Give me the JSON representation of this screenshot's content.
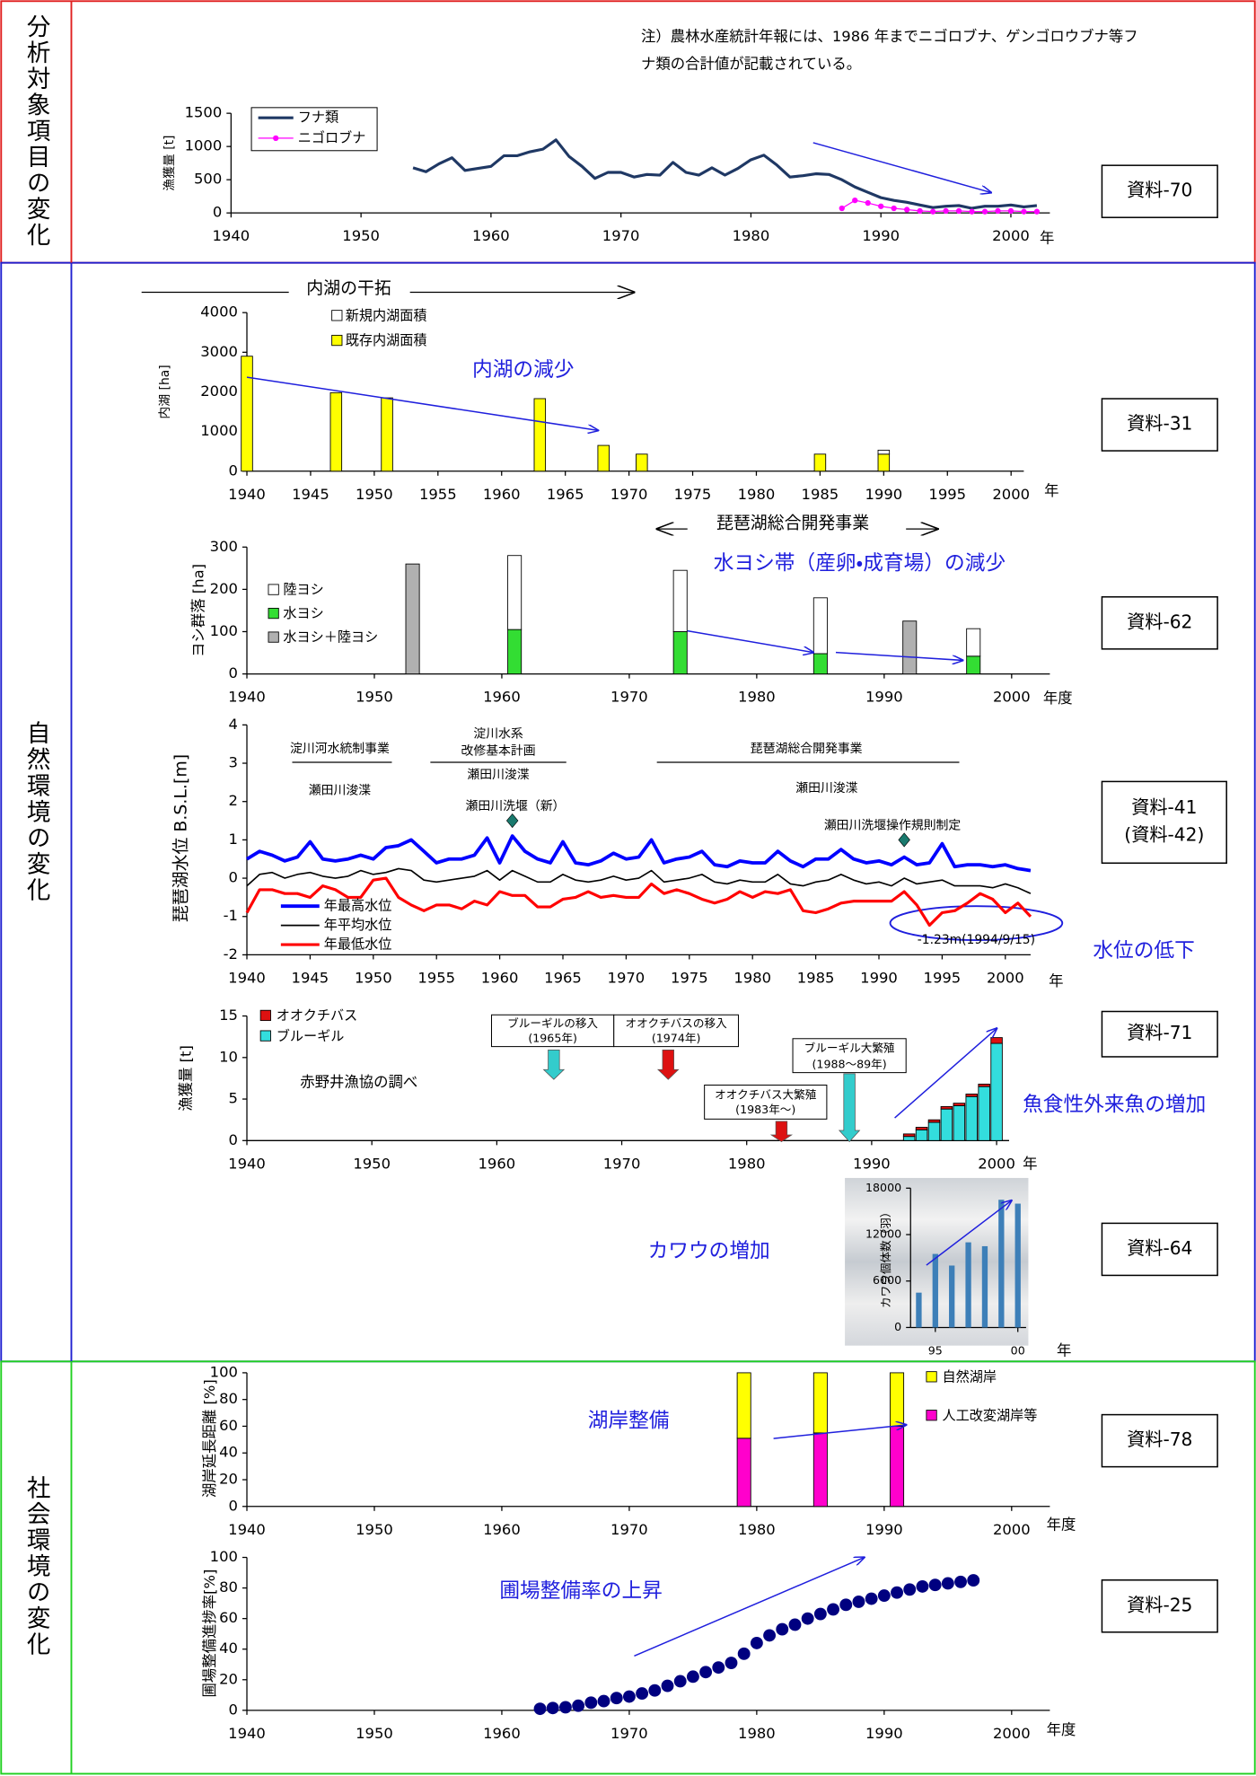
{
  "sections": [
    {
      "label": "分析対象項目の変化"
    },
    {
      "label": "自然環境の変化"
    },
    {
      "label": "社会環境の変化"
    }
  ],
  "chart_data": [
    {
      "type": "line",
      "ylabel": "漁獲量 [t]",
      "x_unit": "年",
      "reference": [
        "資料-70"
      ],
      "notes": [
        "注）農林水産統計年報には、1986 年までニゴロブナ、ゲンゴロウブナ等フ",
        "ナ類の合計値が記載されている。"
      ],
      "x": [
        1954,
        1955,
        1956,
        1957,
        1958,
        1959,
        1960,
        1961,
        1962,
        1963,
        1964,
        1965,
        1966,
        1967,
        1968,
        1969,
        1970,
        1971,
        1972,
        1973,
        1974,
        1975,
        1976,
        1977,
        1978,
        1979,
        1980,
        1981,
        1982,
        1983,
        1984,
        1985,
        1986,
        1987,
        1988,
        1989,
        1990,
        1991,
        1992,
        1993,
        1994,
        1995,
        1996,
        1997,
        1998,
        1999,
        2000,
        2001,
        2002
      ],
      "series": [
        {
          "name": "フナ類",
          "color": "#1f3864",
          "markers": false,
          "values": [
            680,
            620,
            740,
            830,
            640,
            670,
            700,
            860,
            860,
            920,
            960,
            1100,
            850,
            700,
            520,
            610,
            610,
            540,
            580,
            570,
            760,
            610,
            570,
            680,
            570,
            670,
            800,
            870,
            720,
            540,
            560,
            590,
            580,
            500,
            390,
            310,
            230,
            190,
            160,
            120,
            80,
            100,
            110,
            70,
            100,
            100,
            120,
            90,
            110
          ]
        },
        {
          "name": "ニゴロブナ",
          "color": "#ff00ff",
          "markers": true,
          "values": [
            null,
            null,
            null,
            null,
            null,
            null,
            null,
            null,
            null,
            null,
            null,
            null,
            null,
            null,
            null,
            null,
            null,
            null,
            null,
            null,
            null,
            null,
            null,
            null,
            null,
            null,
            null,
            null,
            null,
            null,
            null,
            null,
            null,
            70,
            190,
            150,
            100,
            70,
            50,
            30,
            20,
            30,
            30,
            20,
            20,
            30,
            30,
            20,
            20
          ]
        }
      ],
      "xlim": [
        1940,
        2003
      ],
      "xticks": [
        1940,
        1950,
        1960,
        1970,
        1980,
        1990,
        2000
      ],
      "ylim": [
        0,
        1500
      ],
      "yticks": [
        0,
        500,
        1000,
        1500
      ]
    },
    {
      "type": "bar",
      "ylabel": "内湖 [ha]",
      "x_unit": "年",
      "reference": [
        "資料-31"
      ],
      "notes": [
        "内湖の干拓",
        "内湖の減少"
      ],
      "x": [
        1940,
        1947,
        1951,
        1963,
        1968,
        1971,
        1985,
        1990
      ],
      "series": [
        {
          "name": "新規内湖面積",
          "color": "#ffffff",
          "values": [
            null,
            null,
            null,
            null,
            null,
            null,
            null,
            100
          ]
        },
        {
          "name": "既存内湖面積",
          "color": "#ffff00",
          "values": [
            2900,
            1980,
            1850,
            1830,
            650,
            430,
            430,
            430
          ]
        }
      ],
      "xlim": [
        1940,
        2001
      ],
      "xticks": [
        1940,
        1945,
        1950,
        1955,
        1960,
        1965,
        1970,
        1975,
        1980,
        1985,
        1990,
        1995,
        2000
      ],
      "ylim": [
        0,
        4000
      ],
      "yticks": [
        0,
        1000,
        2000,
        3000,
        4000
      ]
    },
    {
      "type": "bar",
      "ylabel": "ヨシ群落 [ha]",
      "x_unit": "年度",
      "reference": [
        "資料-62"
      ],
      "notes": [
        "琵琶湖総合開発事業",
        "水ヨシ帯（産卵・成育場）の減少"
      ],
      "x": [
        1953,
        1961,
        1974,
        1985,
        1992,
        1997
      ],
      "series": [
        {
          "name": "陸ヨシ",
          "color": "#ffffff",
          "values": [
            null,
            175,
            145,
            132,
            null,
            65
          ]
        },
        {
          "name": "水ヨシ",
          "color": "#33dd33",
          "values": [
            null,
            105,
            100,
            48,
            null,
            42
          ]
        },
        {
          "name": "水ヨシ＋陸ヨシ",
          "color": "#b0b0b0",
          "values": [
            260,
            null,
            null,
            null,
            125,
            null
          ]
        }
      ],
      "xlim": [
        1940,
        2003
      ],
      "xticks": [
        1940,
        1950,
        1960,
        1970,
        1980,
        1990,
        2000
      ],
      "ylim": [
        0,
        300
      ],
      "yticks": [
        0,
        100,
        200,
        300
      ]
    },
    {
      "type": "line",
      "ylabel": "琵琶湖水位 B.S.L.[m]",
      "x_unit": "年",
      "reference": [
        "資料-41",
        "(資料-42)"
      ],
      "notes": [
        "淀川河水統制事業",
        "淀川水系",
        "改修基本計画",
        "瀬田川浚渫",
        "瀬田川浚渫",
        "瀬田川洗堰（新）",
        "琵琶湖総合開発事業",
        "瀬田川浚渫",
        "瀬田川洗堰操作規則制定",
        "-1.23m(1994/9/15)",
        "水位の低下"
      ],
      "x": [
        1940,
        1941,
        1942,
        1943,
        1944,
        1945,
        1946,
        1947,
        1948,
        1949,
        1950,
        1951,
        1952,
        1953,
        1954,
        1955,
        1956,
        1957,
        1958,
        1959,
        1960,
        1961,
        1962,
        1963,
        1964,
        1965,
        1966,
        1967,
        1968,
        1969,
        1970,
        1971,
        1972,
        1973,
        1974,
        1975,
        1976,
        1977,
        1978,
        1979,
        1980,
        1981,
        1982,
        1983,
        1984,
        1985,
        1986,
        1987,
        1988,
        1989,
        1990,
        1991,
        1992,
        1993,
        1994,
        1995,
        1996,
        1997,
        1998,
        1999,
        2000,
        2001,
        2002
      ],
      "series": [
        {
          "name": "年最高水位",
          "color": "#0000ff",
          "values": [
            0.5,
            0.7,
            0.6,
            0.45,
            0.55,
            0.95,
            0.5,
            0.45,
            0.5,
            0.6,
            0.5,
            0.8,
            0.85,
            1.0,
            0.7,
            0.4,
            0.5,
            0.5,
            0.6,
            1.05,
            0.4,
            1.1,
            0.7,
            0.5,
            0.4,
            0.95,
            0.4,
            0.35,
            0.45,
            0.65,
            0.5,
            0.55,
            1.0,
            0.4,
            0.5,
            0.55,
            0.7,
            0.35,
            0.3,
            0.45,
            0.4,
            0.4,
            0.7,
            0.45,
            0.3,
            0.5,
            0.5,
            0.75,
            0.5,
            0.4,
            0.45,
            0.35,
            0.55,
            0.35,
            0.4,
            0.9,
            0.3,
            0.35,
            0.35,
            0.3,
            0.35,
            0.25,
            0.2
          ]
        },
        {
          "name": "年平均水位",
          "color": "#000000",
          "values": [
            -0.2,
            0.1,
            0.15,
            0.0,
            0.1,
            0.15,
            0.05,
            0.0,
            0.05,
            0.2,
            0.1,
            0.15,
            0.25,
            0.2,
            -0.05,
            -0.1,
            -0.05,
            0.0,
            0.05,
            0.2,
            -0.05,
            0.2,
            0.05,
            -0.1,
            -0.1,
            0.1,
            -0.05,
            -0.1,
            -0.05,
            0.05,
            -0.05,
            0.0,
            0.2,
            -0.1,
            -0.05,
            0.0,
            0.1,
            -0.1,
            -0.15,
            -0.05,
            -0.1,
            -0.1,
            0.1,
            -0.15,
            -0.2,
            -0.1,
            -0.05,
            0.1,
            -0.05,
            -0.15,
            -0.1,
            -0.2,
            0.0,
            -0.15,
            -0.1,
            -0.05,
            -0.2,
            -0.2,
            -0.2,
            -0.25,
            -0.15,
            -0.25,
            -0.4
          ]
        },
        {
          "name": "年最低水位",
          "color": "#ff0000",
          "values": [
            -0.9,
            -0.3,
            -0.3,
            -0.4,
            -0.4,
            -0.5,
            -0.2,
            -0.3,
            -0.5,
            -0.5,
            -0.05,
            0.0,
            -0.5,
            -0.7,
            -0.85,
            -0.7,
            -0.7,
            -0.8,
            -0.6,
            -0.7,
            -0.35,
            -0.45,
            -0.45,
            -0.75,
            -0.75,
            -0.55,
            -0.5,
            -0.35,
            -0.5,
            -0.45,
            -0.5,
            -0.5,
            -0.15,
            -0.4,
            -0.3,
            -0.4,
            -0.55,
            -0.65,
            -0.55,
            -0.35,
            -0.5,
            -0.35,
            -0.4,
            -0.3,
            -0.85,
            -0.9,
            -0.8,
            -0.65,
            -0.6,
            -0.6,
            -0.6,
            -0.6,
            -0.35,
            -0.7,
            -1.23,
            -0.9,
            -0.85,
            -0.65,
            -0.4,
            -0.55,
            -0.9,
            -0.65,
            -1.0
          ]
        }
      ],
      "event_markers": {
        "x": [
          1961,
          1992
        ],
        "values": [
          1.5,
          1.0
        ],
        "color": "#1a7a6e"
      },
      "xlim": [
        1940,
        2002
      ],
      "xticks": [
        1940,
        1945,
        1950,
        1955,
        1960,
        1965,
        1970,
        1975,
        1980,
        1985,
        1990,
        1995,
        2000
      ],
      "ylim": [
        -2,
        4
      ],
      "yticks": [
        -2,
        -1,
        0,
        1,
        2,
        3,
        4
      ]
    },
    {
      "type": "bar",
      "ylabel": "漁獲量 [t]",
      "x_unit": "年",
      "reference": [
        "資料-71"
      ],
      "notes": [
        "ブルーギルの移入",
        "(1965年)",
        "オオクチバスの移入",
        "(1974年)",
        "ブルーギル大繁殖",
        "(1988～89年)",
        "オオクチバス大繁殖",
        "(1983年～)",
        "赤野井漁協の調べ",
        "魚食性外来魚の増加"
      ],
      "x": [
        1993,
        1994,
        1995,
        1996,
        1997,
        1998,
        1999,
        2000
      ],
      "series": [
        {
          "name": "オオクチバス",
          "color": "#dd1111",
          "values": [
            0.3,
            0.3,
            0.3,
            0.3,
            0.3,
            0.3,
            0.3,
            0.7
          ]
        },
        {
          "name": "ブルーギル",
          "color": "#33dddd",
          "values": [
            0.5,
            1.3,
            2.2,
            3.8,
            4.2,
            5.3,
            6.5,
            11.7
          ]
        }
      ],
      "xlim": [
        1940,
        2001
      ],
      "xticks": [
        1940,
        1950,
        1960,
        1970,
        1980,
        1990,
        2000
      ],
      "ylim": [
        0,
        15
      ],
      "yticks": [
        0,
        5,
        10,
        15
      ]
    },
    {
      "type": "bar",
      "ylabel": "カワウ個体数（羽）",
      "x_unit": "年",
      "reference": [
        "資料-64"
      ],
      "notes": [
        "カワウの増加"
      ],
      "x": [
        1994,
        1995,
        1996,
        1997,
        1998,
        1999,
        2000
      ],
      "values": [
        4500,
        9500,
        8000,
        11000,
        10500,
        16500,
        16000
      ],
      "color": "#3d7fb8",
      "xlim": [
        1993.5,
        2000.5
      ],
      "xticks": [
        {
          "value": 1995,
          "label": "95"
        },
        {
          "value": 2000,
          "label": "00"
        }
      ],
      "ylim": [
        0,
        18000
      ],
      "yticks": [
        0,
        6000,
        12000,
        18000
      ]
    },
    {
      "type": "bar",
      "ylabel": "湖岸延長距離 [%]",
      "x_unit": "年度",
      "reference": [
        "資料-78"
      ],
      "notes": [
        "湖岸整備"
      ],
      "x": [
        1979,
        1985,
        1991
      ],
      "series": [
        {
          "name": "自然湖岸",
          "color": "#ffff00",
          "values": [
            49,
            45,
            40
          ]
        },
        {
          "name": "人工改変湖岸等",
          "color": "#ff00cc",
          "values": [
            51,
            55,
            60
          ]
        }
      ],
      "xlim": [
        1940,
        2003
      ],
      "xticks": [
        1940,
        1950,
        1960,
        1970,
        1980,
        1990,
        2000
      ],
      "ylim": [
        0,
        100
      ],
      "yticks": [
        0,
        20,
        40,
        60,
        80,
        100
      ]
    },
    {
      "type": "scatter",
      "ylabel": "圃場整備進捗率[%]",
      "x_unit": "年度",
      "reference": [
        "資料-25"
      ],
      "notes": [
        "圃場整備率の上昇"
      ],
      "x": [
        1963,
        1964,
        1965,
        1966,
        1967,
        1968,
        1969,
        1970,
        1971,
        1972,
        1973,
        1974,
        1975,
        1976,
        1977,
        1978,
        1979,
        1980,
        1981,
        1982,
        1983,
        1984,
        1985,
        1986,
        1987,
        1988,
        1989,
        1990,
        1991,
        1992,
        1993,
        1994,
        1995,
        1996,
        1997
      ],
      "values": [
        1,
        1.5,
        2,
        3,
        5,
        6,
        8,
        9,
        11,
        13,
        16,
        19,
        22,
        25,
        28,
        31,
        37,
        44,
        49,
        53,
        56,
        60,
        63,
        66,
        69,
        71,
        73,
        75,
        77,
        79,
        81,
        82,
        83,
        84,
        85
      ],
      "color": "#000080",
      "xlim": [
        1940,
        2003
      ],
      "xticks": [
        1940,
        1950,
        1960,
        1970,
        1980,
        1990,
        2000
      ],
      "ylim": [
        0,
        100
      ],
      "yticks": [
        0,
        20,
        40,
        60,
        80,
        100
      ]
    }
  ]
}
